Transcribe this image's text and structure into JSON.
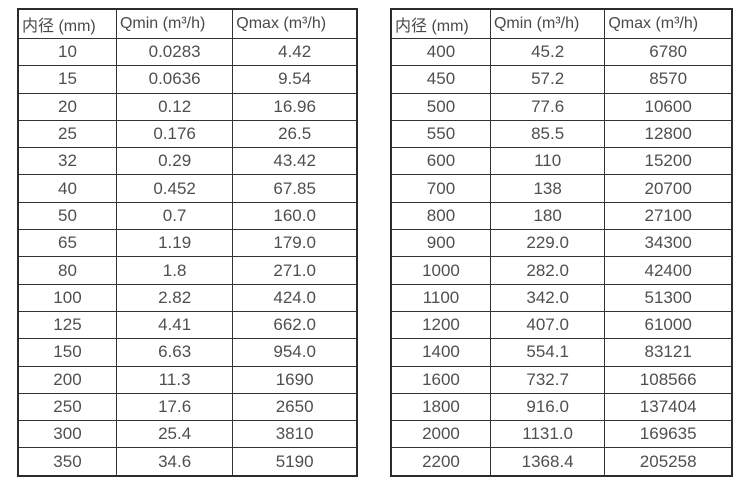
{
  "page": {
    "background_color": "#ffffff",
    "text_color": "#4f4f4f",
    "border_color": "#333333"
  },
  "columns": [
    "内径 (mm)",
    "Qmin (m³/h)",
    "Qmax (m³/h)"
  ],
  "tables": [
    {
      "name": "flow-table-small-diameters",
      "rows": [
        [
          "10",
          "0.0283",
          "4.42"
        ],
        [
          "15",
          "0.0636",
          "9.54"
        ],
        [
          "20",
          "0.12",
          "16.96"
        ],
        [
          "25",
          "0.176",
          "26.5"
        ],
        [
          "32",
          "0.29",
          "43.42"
        ],
        [
          "40",
          "0.452",
          "67.85"
        ],
        [
          "50",
          "0.7",
          "160.0"
        ],
        [
          "65",
          "1.19",
          "179.0"
        ],
        [
          "80",
          "1.8",
          "271.0"
        ],
        [
          "100",
          "2.82",
          "424.0"
        ],
        [
          "125",
          "4.41",
          "662.0"
        ],
        [
          "150",
          "6.63",
          "954.0"
        ],
        [
          "200",
          "11.3",
          "1690"
        ],
        [
          "250",
          "17.6",
          "2650"
        ],
        [
          "300",
          "25.4",
          "3810"
        ],
        [
          "350",
          "34.6",
          "5190"
        ]
      ]
    },
    {
      "name": "flow-table-large-diameters",
      "rows": [
        [
          "400",
          "45.2",
          "6780"
        ],
        [
          "450",
          "57.2",
          "8570"
        ],
        [
          "500",
          "77.6",
          "10600"
        ],
        [
          "550",
          "85.5",
          "12800"
        ],
        [
          "600",
          "110",
          "15200"
        ],
        [
          "700",
          "138",
          "20700"
        ],
        [
          "800",
          "180",
          "27100"
        ],
        [
          "900",
          "229.0",
          "34300"
        ],
        [
          "1000",
          "282.0",
          "42400"
        ],
        [
          "1100",
          "342.0",
          "51300"
        ],
        [
          "1200",
          "407.0",
          "61000"
        ],
        [
          "1400",
          "554.1",
          "83121"
        ],
        [
          "1600",
          "732.7",
          "108566"
        ],
        [
          "1800",
          "916.0",
          "137404"
        ],
        [
          "2000",
          "1131.0",
          "169635"
        ],
        [
          "2200",
          "1368.4",
          "205258"
        ]
      ]
    }
  ]
}
